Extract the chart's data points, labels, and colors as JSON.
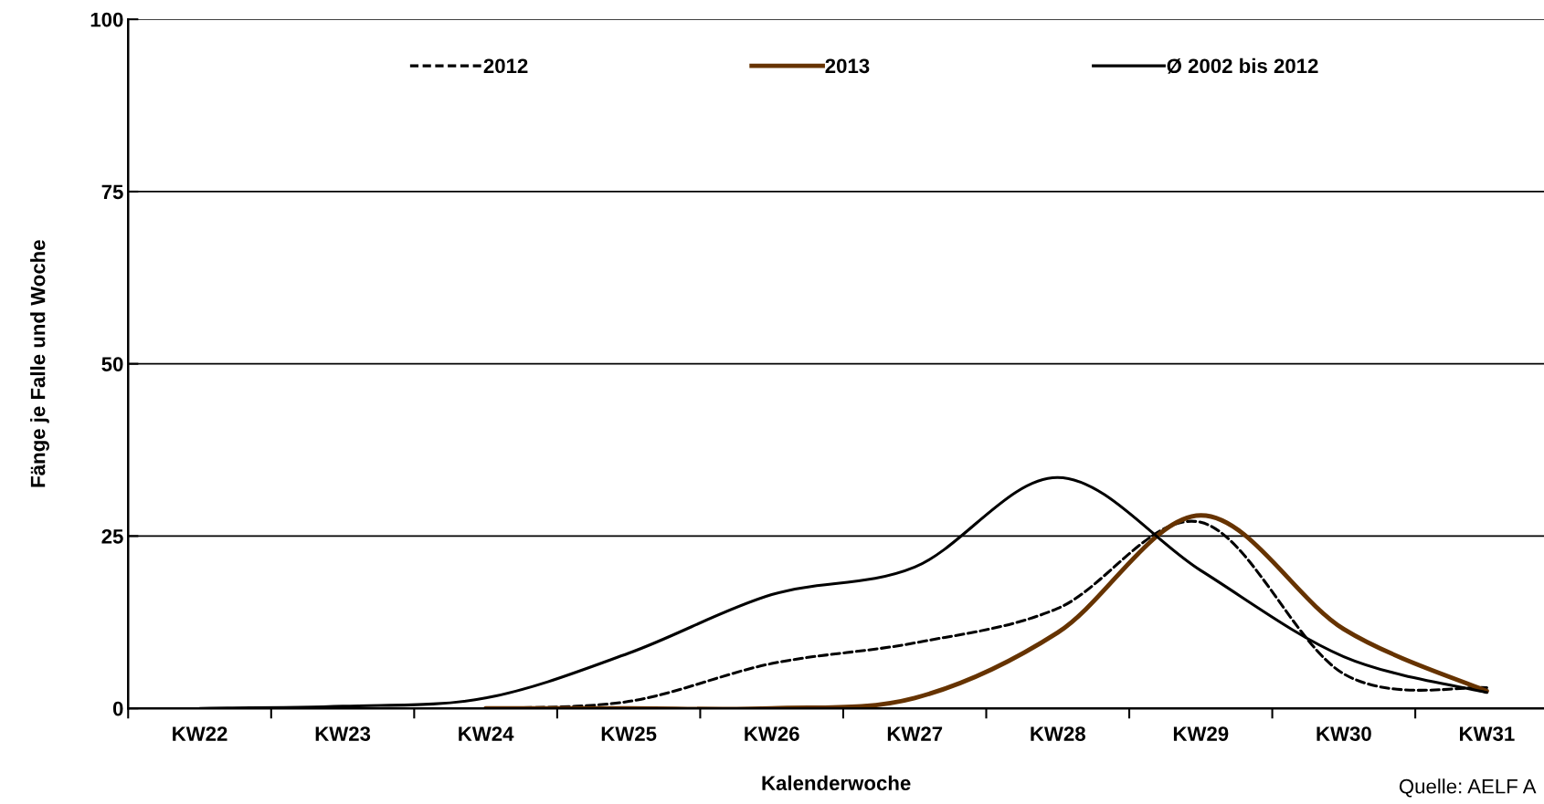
{
  "chart_data": {
    "type": "line",
    "xlabel": "Kalenderwoche",
    "ylabel": "Fänge je Falle und Woche",
    "categories": [
      "KW22",
      "KW23",
      "KW24",
      "KW25",
      "KW26",
      "KW27",
      "KW28",
      "KW29",
      "KW30",
      "KW31"
    ],
    "series": [
      {
        "name": "2012",
        "color": "#000000",
        "line_style": "dashed",
        "values": [
          null,
          null,
          0,
          1,
          6.5,
          9.5,
          14.5,
          27,
          5,
          3
        ]
      },
      {
        "name": "2013",
        "color": "#663300",
        "line_style": "solid",
        "values": [
          null,
          null,
          0,
          0,
          0,
          1.5,
          11,
          28,
          11.5,
          2.5
        ]
      },
      {
        "name": "Ø 2002 bis 2012",
        "color": "#000000",
        "line_style": "solid",
        "values": [
          0,
          0.3,
          1.5,
          8,
          16.5,
          20.5,
          33.5,
          20,
          7.5,
          2.3
        ]
      }
    ],
    "ylim": [
      0,
      100
    ],
    "yticks": [
      0,
      25,
      50,
      75,
      100
    ],
    "grid": "y",
    "legend": "top",
    "marker": "none",
    "annotations": [
      "Quelle: AELF A"
    ]
  }
}
